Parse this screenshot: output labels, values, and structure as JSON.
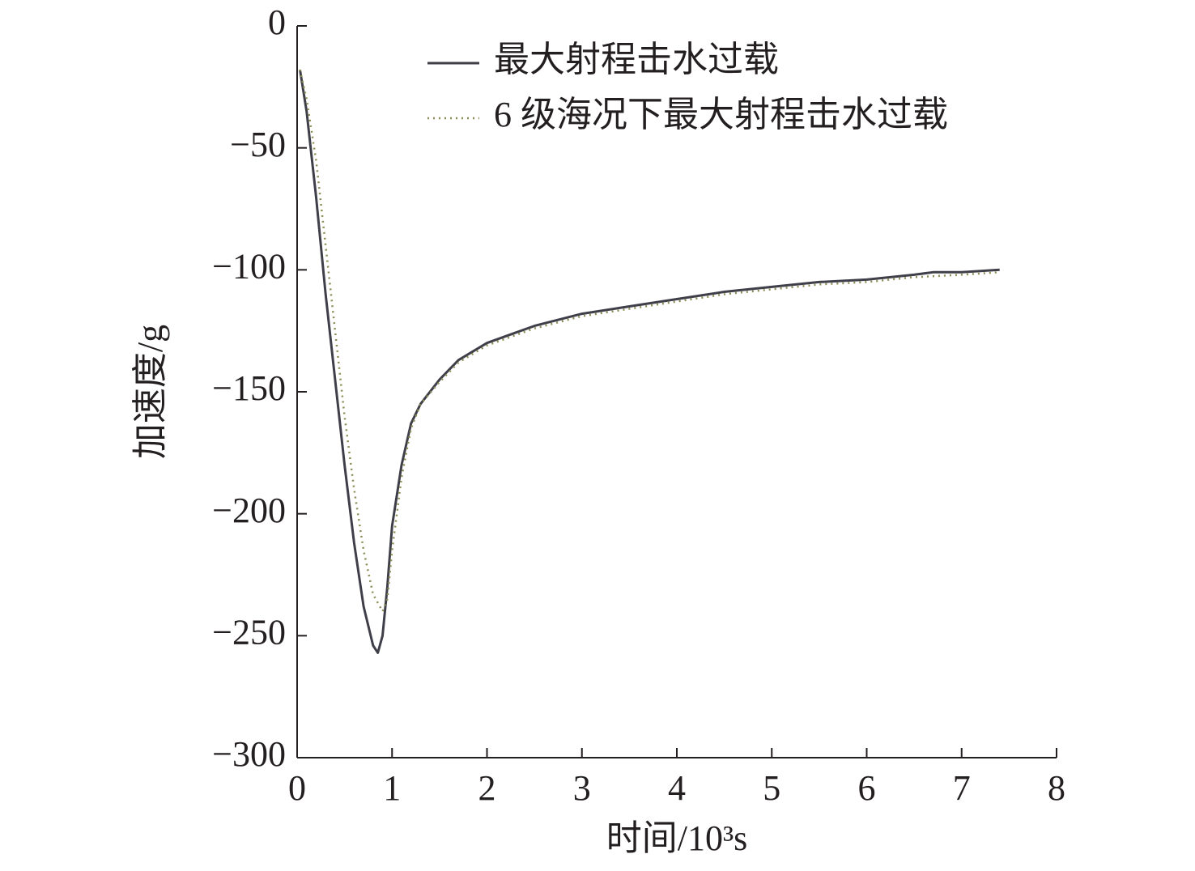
{
  "chart_data": {
    "type": "line",
    "xlabel": "时间/10³s",
    "ylabel": "加速度/g",
    "xlim": [
      0,
      8
    ],
    "xticks": [
      0,
      1,
      2,
      3,
      4,
      5,
      6,
      7,
      8
    ],
    "ylim": [
      -300,
      0
    ],
    "yticks": [
      {
        "value": -300,
        "label": "−300"
      },
      {
        "value": -250,
        "label": "−250"
      },
      {
        "value": -200,
        "label": "−200"
      },
      {
        "value": -150,
        "label": "−150"
      },
      {
        "value": -100,
        "label": "−100"
      },
      {
        "value": -50,
        "label": "−50"
      },
      0
    ],
    "legend": "upper right",
    "series": [
      {
        "name": "最大射程击水过载",
        "color": "#3f3f4a",
        "style": "solid",
        "x": [
          0.03,
          0.1,
          0.2,
          0.3,
          0.4,
          0.5,
          0.6,
          0.7,
          0.8,
          0.85,
          0.9,
          0.95,
          1.0,
          1.1,
          1.2,
          1.3,
          1.5,
          1.7,
          2.0,
          2.5,
          3.0,
          3.5,
          4.0,
          4.5,
          5.0,
          5.5,
          6.0,
          6.5,
          6.7,
          7.0,
          7.4
        ],
        "values": [
          -18,
          -35,
          -70,
          -110,
          -145,
          -180,
          -212,
          -238,
          -254,
          -257,
          -250,
          -230,
          -205,
          -180,
          -163,
          -155,
          -145,
          -137,
          -130,
          -123,
          -118,
          -115,
          -112,
          -109,
          -107,
          -105,
          -104,
          -102,
          -101,
          -101,
          -100
        ]
      },
      {
        "name": "6 级海况下最大射程击水过载",
        "color": "#8c8c55",
        "style": "dotted",
        "x": [
          0.03,
          0.1,
          0.2,
          0.3,
          0.4,
          0.5,
          0.6,
          0.7,
          0.8,
          0.9,
          0.95,
          1.0,
          1.1,
          1.2,
          1.3,
          1.5,
          1.7,
          2.0,
          2.5,
          3.0,
          3.5,
          4.0,
          4.5,
          5.0,
          5.5,
          6.0,
          6.5,
          7.0,
          7.4
        ],
        "values": [
          -18,
          -30,
          -55,
          -90,
          -125,
          -160,
          -190,
          -215,
          -233,
          -240,
          -235,
          -215,
          -185,
          -165,
          -155,
          -146,
          -138,
          -131,
          -124,
          -119,
          -116,
          -113,
          -110,
          -108,
          -106,
          -105,
          -103,
          -102,
          -101
        ]
      }
    ]
  }
}
